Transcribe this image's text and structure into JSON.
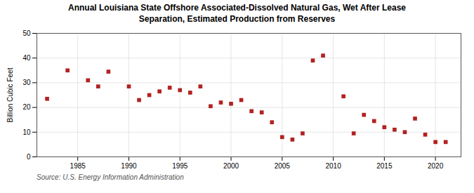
{
  "chart_data": {
    "type": "scatter",
    "title": "Annual Louisiana State Offshore Associated-Dissolved Natural Gas, Wet After Lease\nSeparation, Estimated Production from Reserves",
    "ylabel": "Billion Cubic Feet",
    "source": "Source: U.S. Energy Information Administration",
    "x": [
      1982,
      1984,
      1986,
      1987,
      1988,
      1990,
      1991,
      1992,
      1993,
      1994,
      1995,
      1996,
      1997,
      1998,
      1999,
      2000,
      2001,
      2002,
      2003,
      2004,
      2005,
      2006,
      2007,
      2008,
      2009,
      2011,
      2012,
      2013,
      2014,
      2015,
      2016,
      2017,
      2018,
      2019,
      2020,
      2021
    ],
    "values": [
      23.5,
      35.0,
      31.0,
      28.5,
      34.5,
      28.5,
      23.0,
      25.0,
      26.5,
      28.0,
      27.0,
      26.0,
      28.5,
      20.5,
      22.0,
      21.5,
      23.0,
      18.5,
      18.0,
      14.0,
      8.0,
      7.0,
      9.5,
      39.0,
      41.0,
      24.5,
      9.5,
      17.0,
      14.5,
      12.0,
      11.0,
      10.0,
      15.5,
      9.0,
      6.0,
      6.0
    ],
    "color": "#b22222",
    "marker": "square",
    "xlim": [
      1981,
      2022.5
    ],
    "ylim": [
      0,
      50
    ],
    "xticks": [
      1985,
      1990,
      1995,
      2000,
      2005,
      2010,
      2015,
      2020
    ],
    "yticks": [
      0,
      10,
      20,
      30,
      40,
      50
    ],
    "grid": true
  }
}
